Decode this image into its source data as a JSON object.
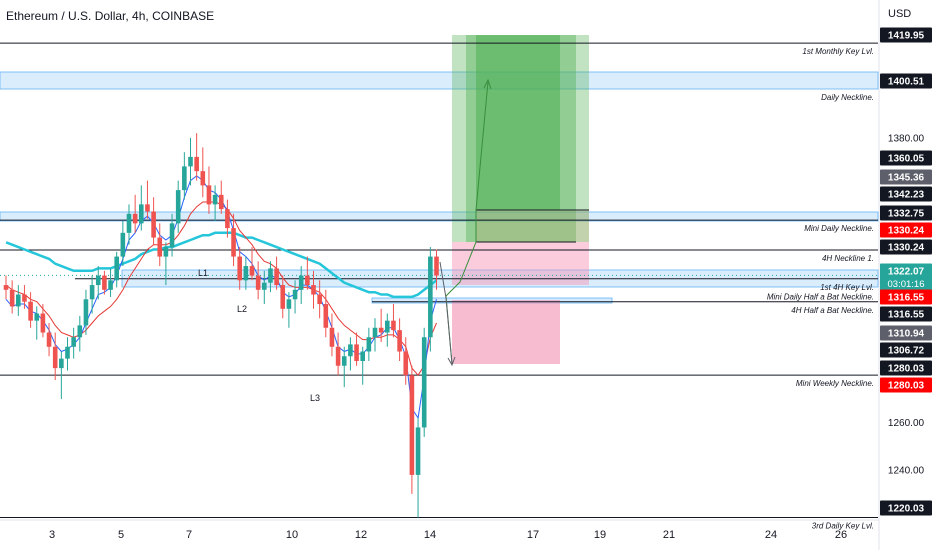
{
  "header": {
    "title": "Ethereum / U.S. Dollar, 4h, COINBASE",
    "currency": "USD"
  },
  "colors": {
    "up": "#26a69a",
    "down": "#ef5350",
    "ema_fast": "#2962ff",
    "ema_mid": "#e53935",
    "ema_slow": "#26c6da",
    "profit_zone": "#4caf50",
    "loss_zone": "#f48fb1",
    "zone_band": "#bbdefb",
    "current_price_tag": "#26a69a",
    "red_tag": "#ff0000",
    "black_tag": "#131722",
    "gray_tag": "#5d606b"
  },
  "chart_data": {
    "type": "candlestick",
    "instrument": "Ethereum / U.S. Dollar, 4h, COINBASE",
    "ylim": [
      1219,
      1428
    ],
    "x_ticks": [
      "3",
      "5",
      "7",
      "10",
      "12",
      "14",
      "17",
      "19",
      "21",
      "24",
      "26"
    ],
    "y_ticks": [
      "1380.00",
      "1260.00",
      "1240.00"
    ],
    "level_lines": [
      {
        "price": 1419.95,
        "label": "1st Monthly Key Lvl.",
        "tag": "black"
      },
      {
        "price": 1400.51,
        "label": "Daily Neckline.",
        "tag": "black"
      },
      {
        "price": 1345.36,
        "label": "Mini Daily Neckline.",
        "tag": "gray"
      },
      {
        "price": 1332.75,
        "label": "4H Neckline 1.",
        "tag": "black"
      },
      {
        "price": 1320.65,
        "label": "1st 4H Key Lvl.",
        "tag": "none"
      },
      {
        "price": 1316.55,
        "label": "Mini Daily Half a Bat Neckline.",
        "tag": "none"
      },
      {
        "price": 1310.94,
        "label": "4H Half a Bat Neckline.",
        "tag": "gray"
      },
      {
        "price": 1280.03,
        "label": "Mini Weekly Neckline.",
        "tag": "black"
      },
      {
        "price": 1220.03,
        "label": "3rd Daily Key Lvl.",
        "tag": "black"
      }
    ],
    "price_tags": [
      {
        "value": "1419.95",
        "style": "black"
      },
      {
        "value": "1400.51",
        "style": "black"
      },
      {
        "value": "1360.05",
        "style": "black"
      },
      {
        "value": "1345.36",
        "style": "gray"
      },
      {
        "value": "1342.23",
        "style": "black"
      },
      {
        "value": "1332.75",
        "style": "black"
      },
      {
        "value": "1330.24",
        "style": "red"
      },
      {
        "value": "1330.24",
        "style": "black"
      },
      {
        "value": "1322.07",
        "sub": "03:01:16",
        "style": "current"
      },
      {
        "value": "1316.55",
        "style": "red"
      },
      {
        "value": "1316.55",
        "style": "black"
      },
      {
        "value": "1310.94",
        "style": "gray"
      },
      {
        "value": "1306.72",
        "style": "black"
      },
      {
        "value": "1280.03",
        "style": "black"
      },
      {
        "value": "1280.03",
        "style": "red"
      },
      {
        "value": "1220.03",
        "style": "black"
      }
    ],
    "annotations": [
      "L1",
      "L2",
      "L3"
    ],
    "candles": [
      {
        "o": 1318,
        "h": 1322,
        "l": 1312,
        "c": 1316
      },
      {
        "o": 1316,
        "h": 1320,
        "l": 1306,
        "c": 1309
      },
      {
        "o": 1309,
        "h": 1318,
        "l": 1305,
        "c": 1314
      },
      {
        "o": 1314,
        "h": 1318,
        "l": 1308,
        "c": 1311
      },
      {
        "o": 1311,
        "h": 1315,
        "l": 1300,
        "c": 1303
      },
      {
        "o": 1303,
        "h": 1309,
        "l": 1295,
        "c": 1306
      },
      {
        "o": 1306,
        "h": 1310,
        "l": 1296,
        "c": 1298
      },
      {
        "o": 1298,
        "h": 1302,
        "l": 1288,
        "c": 1292
      },
      {
        "o": 1292,
        "h": 1298,
        "l": 1278,
        "c": 1283
      },
      {
        "o": 1283,
        "h": 1290,
        "l": 1270,
        "c": 1287
      },
      {
        "o": 1287,
        "h": 1296,
        "l": 1282,
        "c": 1292
      },
      {
        "o": 1292,
        "h": 1300,
        "l": 1287,
        "c": 1296
      },
      {
        "o": 1296,
        "h": 1305,
        "l": 1290,
        "c": 1301
      },
      {
        "o": 1301,
        "h": 1316,
        "l": 1297,
        "c": 1312
      },
      {
        "o": 1312,
        "h": 1322,
        "l": 1306,
        "c": 1318
      },
      {
        "o": 1318,
        "h": 1326,
        "l": 1312,
        "c": 1322
      },
      {
        "o": 1322,
        "h": 1324,
        "l": 1314,
        "c": 1316
      },
      {
        "o": 1316,
        "h": 1325,
        "l": 1313,
        "c": 1320
      },
      {
        "o": 1320,
        "h": 1332,
        "l": 1317,
        "c": 1330
      },
      {
        "o": 1330,
        "h": 1345,
        "l": 1326,
        "c": 1340
      },
      {
        "o": 1340,
        "h": 1352,
        "l": 1335,
        "c": 1348
      },
      {
        "o": 1348,
        "h": 1356,
        "l": 1340,
        "c": 1344
      },
      {
        "o": 1344,
        "h": 1360,
        "l": 1341,
        "c": 1352
      },
      {
        "o": 1352,
        "h": 1362,
        "l": 1346,
        "c": 1349
      },
      {
        "o": 1349,
        "h": 1355,
        "l": 1335,
        "c": 1338
      },
      {
        "o": 1338,
        "h": 1344,
        "l": 1326,
        "c": 1330
      },
      {
        "o": 1330,
        "h": 1336,
        "l": 1318,
        "c": 1334
      },
      {
        "o": 1334,
        "h": 1348,
        "l": 1330,
        "c": 1344
      },
      {
        "o": 1344,
        "h": 1362,
        "l": 1340,
        "c": 1358
      },
      {
        "o": 1358,
        "h": 1374,
        "l": 1354,
        "c": 1368
      },
      {
        "o": 1368,
        "h": 1380,
        "l": 1360,
        "c": 1372
      },
      {
        "o": 1372,
        "h": 1382,
        "l": 1362,
        "c": 1366
      },
      {
        "o": 1366,
        "h": 1376,
        "l": 1355,
        "c": 1360
      },
      {
        "o": 1360,
        "h": 1368,
        "l": 1348,
        "c": 1352
      },
      {
        "o": 1352,
        "h": 1360,
        "l": 1345,
        "c": 1356
      },
      {
        "o": 1356,
        "h": 1362,
        "l": 1348,
        "c": 1350
      },
      {
        "o": 1350,
        "h": 1354,
        "l": 1338,
        "c": 1342
      },
      {
        "o": 1342,
        "h": 1348,
        "l": 1326,
        "c": 1330
      },
      {
        "o": 1330,
        "h": 1334,
        "l": 1316,
        "c": 1320
      },
      {
        "o": 1320,
        "h": 1330,
        "l": 1316,
        "c": 1326
      },
      {
        "o": 1326,
        "h": 1334,
        "l": 1320,
        "c": 1322
      },
      {
        "o": 1322,
        "h": 1328,
        "l": 1312,
        "c": 1316
      },
      {
        "o": 1316,
        "h": 1324,
        "l": 1310,
        "c": 1319
      },
      {
        "o": 1319,
        "h": 1328,
        "l": 1315,
        "c": 1325
      },
      {
        "o": 1325,
        "h": 1330,
        "l": 1316,
        "c": 1318
      },
      {
        "o": 1318,
        "h": 1322,
        "l": 1304,
        "c": 1308
      },
      {
        "o": 1308,
        "h": 1315,
        "l": 1300,
        "c": 1312
      },
      {
        "o": 1312,
        "h": 1320,
        "l": 1306,
        "c": 1316
      },
      {
        "o": 1316,
        "h": 1326,
        "l": 1310,
        "c": 1322
      },
      {
        "o": 1322,
        "h": 1330,
        "l": 1316,
        "c": 1318
      },
      {
        "o": 1318,
        "h": 1324,
        "l": 1308,
        "c": 1314
      },
      {
        "o": 1314,
        "h": 1320,
        "l": 1304,
        "c": 1310
      },
      {
        "o": 1310,
        "h": 1316,
        "l": 1296,
        "c": 1300
      },
      {
        "o": 1300,
        "h": 1306,
        "l": 1288,
        "c": 1292
      },
      {
        "o": 1292,
        "h": 1298,
        "l": 1280,
        "c": 1284
      },
      {
        "o": 1284,
        "h": 1292,
        "l": 1275,
        "c": 1288
      },
      {
        "o": 1288,
        "h": 1296,
        "l": 1282,
        "c": 1293
      },
      {
        "o": 1293,
        "h": 1298,
        "l": 1284,
        "c": 1286
      },
      {
        "o": 1286,
        "h": 1292,
        "l": 1276,
        "c": 1290
      },
      {
        "o": 1290,
        "h": 1300,
        "l": 1286,
        "c": 1296
      },
      {
        "o": 1296,
        "h": 1304,
        "l": 1290,
        "c": 1300
      },
      {
        "o": 1300,
        "h": 1308,
        "l": 1294,
        "c": 1298
      },
      {
        "o": 1298,
        "h": 1306,
        "l": 1292,
        "c": 1303
      },
      {
        "o": 1303,
        "h": 1310,
        "l": 1296,
        "c": 1299
      },
      {
        "o": 1299,
        "h": 1304,
        "l": 1286,
        "c": 1290
      },
      {
        "o": 1290,
        "h": 1296,
        "l": 1276,
        "c": 1280
      },
      {
        "o": 1280,
        "h": 1284,
        "l": 1230,
        "c": 1238
      },
      {
        "o": 1238,
        "h": 1262,
        "l": 1220,
        "c": 1258
      },
      {
        "o": 1258,
        "h": 1300,
        "l": 1254,
        "c": 1296
      },
      {
        "o": 1296,
        "h": 1334,
        "l": 1290,
        "c": 1330
      },
      {
        "o": 1330,
        "h": 1333,
        "l": 1316,
        "c": 1322
      }
    ],
    "ema_fast": [
      1312,
      1309,
      1310,
      1310,
      1307,
      1306,
      1303,
      1299,
      1293,
      1290,
      1291,
      1293,
      1296,
      1302,
      1308,
      1314,
      1315,
      1317,
      1322,
      1329,
      1337,
      1340,
      1345,
      1347,
      1344,
      1339,
      1337,
      1339,
      1346,
      1355,
      1362,
      1364,
      1362,
      1358,
      1357,
      1354,
      1349,
      1341,
      1332,
      1330,
      1327,
      1322,
      1320,
      1322,
      1321,
      1315,
      1313,
      1314,
      1318,
      1318,
      1316,
      1313,
      1307,
      1300,
      1292,
      1290,
      1291,
      1289,
      1289,
      1292,
      1296,
      1297,
      1300,
      1300,
      1295,
      1288,
      1266,
      1262,
      1279,
      1303,
      1312
    ],
    "ema_mid": [
      1318,
      1316,
      1315,
      1314,
      1312,
      1311,
      1308,
      1305,
      1301,
      1298,
      1297,
      1296,
      1297,
      1299,
      1302,
      1305,
      1307,
      1309,
      1312,
      1316,
      1321,
      1325,
      1329,
      1333,
      1335,
      1335,
      1335,
      1336,
      1339,
      1343,
      1348,
      1351,
      1353,
      1353,
      1353,
      1352,
      1350,
      1346,
      1341,
      1338,
      1335,
      1331,
      1328,
      1327,
      1325,
      1321,
      1318,
      1317,
      1317,
      1317,
      1316,
      1315,
      1312,
      1308,
      1304,
      1301,
      1299,
      1297,
      1295,
      1295,
      1296,
      1296,
      1297,
      1297,
      1295,
      1292,
      1283,
      1280,
      1284,
      1296,
      1302
    ],
    "ema_slow": [
      1336,
      1335,
      1334,
      1333,
      1332,
      1331,
      1330,
      1329,
      1327,
      1326,
      1325,
      1324,
      1324,
      1324,
      1324,
      1325,
      1325,
      1325,
      1326,
      1327,
      1328,
      1329,
      1331,
      1332,
      1333,
      1333,
      1334,
      1334,
      1335,
      1336,
      1337,
      1338,
      1339,
      1339,
      1340,
      1340,
      1340,
      1340,
      1339,
      1338,
      1338,
      1337,
      1336,
      1335,
      1334,
      1333,
      1332,
      1331,
      1330,
      1329,
      1328,
      1327,
      1325,
      1323,
      1321,
      1319,
      1318,
      1317,
      1316,
      1315,
      1315,
      1314,
      1314,
      1313,
      1313,
      1313,
      1313,
      1314,
      1316,
      1318,
      1320
    ]
  }
}
